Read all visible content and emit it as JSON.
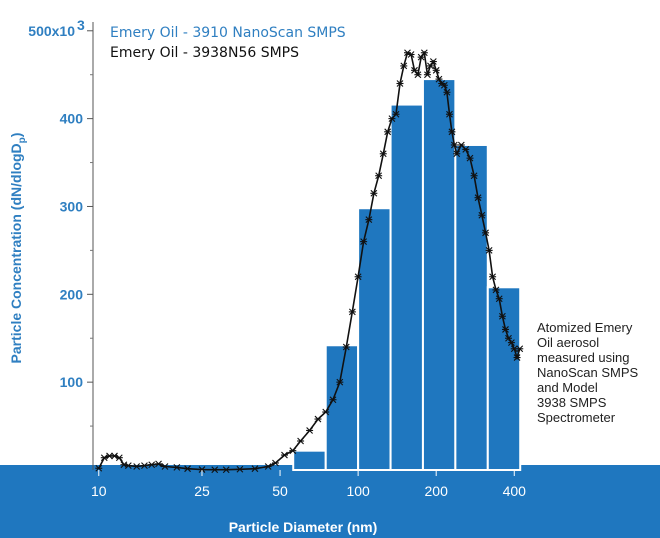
{
  "colors": {
    "bars": "#1f77bf",
    "line": "#111111",
    "bar_edge": "#ffffff",
    "band": "#1f77bf",
    "ytick_text": "#2f7fc1",
    "legend_nanoscan": "#2f7fc1",
    "legend_smps": "#111111"
  },
  "annotation": {
    "lines": [
      "Atomized Emery",
      "Oil aerosol",
      "measured using",
      "NanoScan SMPS",
      "and Model",
      "3938 SMPS",
      "Spectrometer"
    ]
  },
  "chart_data": {
    "type": "bar",
    "xlabel": "Particle Diameter (nm)",
    "ylabel": "Particle Concentration (dN/dlogD",
    "ylabel_subscript": "p",
    "ylabel_close": ")",
    "xscale": "log",
    "xlim": [
      9.5,
      440
    ],
    "ylim": [
      0,
      510000
    ],
    "ytick_values": [
      100000,
      200000,
      300000,
      400000,
      500000
    ],
    "ytick_labels": [
      "100",
      "200",
      "300",
      "400",
      "500x10"
    ],
    "ytick_exponent": "3",
    "xtick_values": [
      10,
      25,
      50,
      100,
      200,
      400
    ],
    "xtick_labels": [
      "10",
      "25",
      "50",
      "100",
      "200",
      "400"
    ],
    "legend": [
      "Emery Oil - 3910 NanoScan SMPS",
      "Emery Oil - 3938N56 SMPS"
    ],
    "series": [
      {
        "name": "Emery Oil - 3910 NanoScan SMPS",
        "type": "bar",
        "bin_edges": [
          56.2,
          75.0,
          100.0,
          133.4,
          177.8,
          237.1,
          316.2,
          421.7
        ],
        "values": [
          22000,
          142000,
          298000,
          416000,
          445000,
          370000,
          208000
        ]
      },
      {
        "name": "Emery Oil - 3938N56 SMPS",
        "type": "line",
        "x": [
          10,
          10.5,
          11,
          11.5,
          12,
          12.5,
          13,
          14,
          15,
          16,
          17,
          18,
          20,
          22,
          25,
          28,
          31,
          35,
          40,
          45,
          48,
          52,
          56,
          60,
          65,
          70,
          75,
          80,
          85,
          90,
          95,
          100,
          105,
          110,
          115,
          120,
          125,
          130,
          135,
          140,
          145,
          150,
          155,
          160,
          165,
          170,
          175,
          180,
          185,
          190,
          195,
          200,
          205,
          210,
          215,
          220,
          225,
          230,
          235,
          240,
          250,
          260,
          270,
          280,
          290,
          300,
          310,
          320,
          330,
          340,
          350,
          360,
          370,
          380,
          390,
          400,
          410,
          420
        ],
        "y": [
          2000,
          14000,
          16000,
          16000,
          14000,
          6000,
          5000,
          4000,
          5000,
          6000,
          7000,
          4000,
          3000,
          1500,
          500,
          300,
          300,
          800,
          1500,
          4000,
          8000,
          17000,
          22000,
          33000,
          45000,
          58000,
          66000,
          80000,
          100000,
          140000,
          180000,
          220000,
          260000,
          285000,
          315000,
          335000,
          360000,
          385000,
          400000,
          405000,
          440000,
          460000,
          475000,
          473000,
          455000,
          450000,
          470000,
          475000,
          450000,
          460000,
          465000,
          455000,
          445000,
          440000,
          438000,
          430000,
          405000,
          385000,
          370000,
          360000,
          370000,
          365000,
          355000,
          335000,
          310000,
          290000,
          270000,
          250000,
          220000,
          205000,
          195000,
          175000,
          160000,
          150000,
          145000,
          138000,
          128000,
          138000
        ]
      }
    ]
  }
}
